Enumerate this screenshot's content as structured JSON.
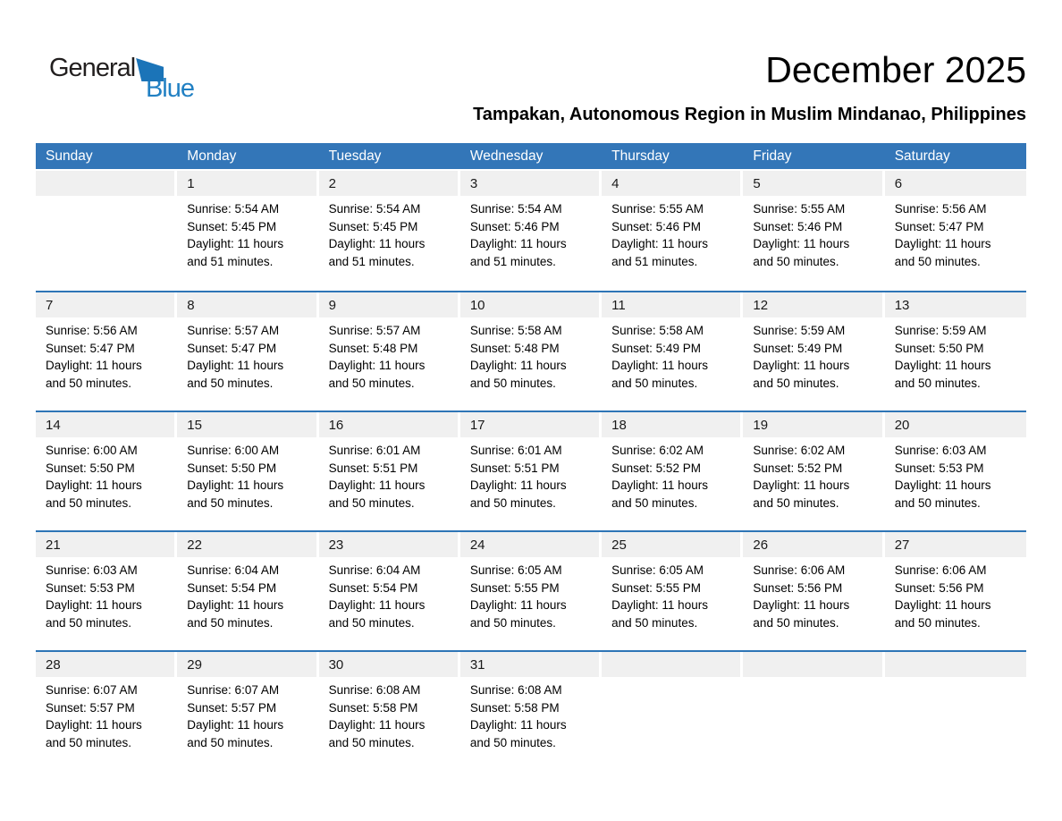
{
  "logo": {
    "general": "General",
    "blue": "Blue"
  },
  "header": {
    "month_year": "December 2025",
    "location": "Tampakan, Autonomous Region in Muslim Mindanao, Philippines"
  },
  "weekdays": [
    "Sunday",
    "Monday",
    "Tuesday",
    "Wednesday",
    "Thursday",
    "Friday",
    "Saturday"
  ],
  "colors": {
    "header_blue": "#3376b8",
    "separator_blue": "#2e75b6",
    "day_strip_gray": "#f0f0f0",
    "logo_blue": "#2180c3",
    "logo_triangle_blue": "#1b74b8",
    "text_black": "#000000"
  },
  "weeks": [
    [
      {
        "day": "",
        "sunrise": "",
        "sunset": "",
        "daylight1": "",
        "daylight2": ""
      },
      {
        "day": "1",
        "sunrise": "Sunrise: 5:54 AM",
        "sunset": "Sunset: 5:45 PM",
        "daylight1": "Daylight: 11 hours",
        "daylight2": "and 51 minutes."
      },
      {
        "day": "2",
        "sunrise": "Sunrise: 5:54 AM",
        "sunset": "Sunset: 5:45 PM",
        "daylight1": "Daylight: 11 hours",
        "daylight2": "and 51 minutes."
      },
      {
        "day": "3",
        "sunrise": "Sunrise: 5:54 AM",
        "sunset": "Sunset: 5:46 PM",
        "daylight1": "Daylight: 11 hours",
        "daylight2": "and 51 minutes."
      },
      {
        "day": "4",
        "sunrise": "Sunrise: 5:55 AM",
        "sunset": "Sunset: 5:46 PM",
        "daylight1": "Daylight: 11 hours",
        "daylight2": "and 51 minutes."
      },
      {
        "day": "5",
        "sunrise": "Sunrise: 5:55 AM",
        "sunset": "Sunset: 5:46 PM",
        "daylight1": "Daylight: 11 hours",
        "daylight2": "and 50 minutes."
      },
      {
        "day": "6",
        "sunrise": "Sunrise: 5:56 AM",
        "sunset": "Sunset: 5:47 PM",
        "daylight1": "Daylight: 11 hours",
        "daylight2": "and 50 minutes."
      }
    ],
    [
      {
        "day": "7",
        "sunrise": "Sunrise: 5:56 AM",
        "sunset": "Sunset: 5:47 PM",
        "daylight1": "Daylight: 11 hours",
        "daylight2": "and 50 minutes."
      },
      {
        "day": "8",
        "sunrise": "Sunrise: 5:57 AM",
        "sunset": "Sunset: 5:47 PM",
        "daylight1": "Daylight: 11 hours",
        "daylight2": "and 50 minutes."
      },
      {
        "day": "9",
        "sunrise": "Sunrise: 5:57 AM",
        "sunset": "Sunset: 5:48 PM",
        "daylight1": "Daylight: 11 hours",
        "daylight2": "and 50 minutes."
      },
      {
        "day": "10",
        "sunrise": "Sunrise: 5:58 AM",
        "sunset": "Sunset: 5:48 PM",
        "daylight1": "Daylight: 11 hours",
        "daylight2": "and 50 minutes."
      },
      {
        "day": "11",
        "sunrise": "Sunrise: 5:58 AM",
        "sunset": "Sunset: 5:49 PM",
        "daylight1": "Daylight: 11 hours",
        "daylight2": "and 50 minutes."
      },
      {
        "day": "12",
        "sunrise": "Sunrise: 5:59 AM",
        "sunset": "Sunset: 5:49 PM",
        "daylight1": "Daylight: 11 hours",
        "daylight2": "and 50 minutes."
      },
      {
        "day": "13",
        "sunrise": "Sunrise: 5:59 AM",
        "sunset": "Sunset: 5:50 PM",
        "daylight1": "Daylight: 11 hours",
        "daylight2": "and 50 minutes."
      }
    ],
    [
      {
        "day": "14",
        "sunrise": "Sunrise: 6:00 AM",
        "sunset": "Sunset: 5:50 PM",
        "daylight1": "Daylight: 11 hours",
        "daylight2": "and 50 minutes."
      },
      {
        "day": "15",
        "sunrise": "Sunrise: 6:00 AM",
        "sunset": "Sunset: 5:50 PM",
        "daylight1": "Daylight: 11 hours",
        "daylight2": "and 50 minutes."
      },
      {
        "day": "16",
        "sunrise": "Sunrise: 6:01 AM",
        "sunset": "Sunset: 5:51 PM",
        "daylight1": "Daylight: 11 hours",
        "daylight2": "and 50 minutes."
      },
      {
        "day": "17",
        "sunrise": "Sunrise: 6:01 AM",
        "sunset": "Sunset: 5:51 PM",
        "daylight1": "Daylight: 11 hours",
        "daylight2": "and 50 minutes."
      },
      {
        "day": "18",
        "sunrise": "Sunrise: 6:02 AM",
        "sunset": "Sunset: 5:52 PM",
        "daylight1": "Daylight: 11 hours",
        "daylight2": "and 50 minutes."
      },
      {
        "day": "19",
        "sunrise": "Sunrise: 6:02 AM",
        "sunset": "Sunset: 5:52 PM",
        "daylight1": "Daylight: 11 hours",
        "daylight2": "and 50 minutes."
      },
      {
        "day": "20",
        "sunrise": "Sunrise: 6:03 AM",
        "sunset": "Sunset: 5:53 PM",
        "daylight1": "Daylight: 11 hours",
        "daylight2": "and 50 minutes."
      }
    ],
    [
      {
        "day": "21",
        "sunrise": "Sunrise: 6:03 AM",
        "sunset": "Sunset: 5:53 PM",
        "daylight1": "Daylight: 11 hours",
        "daylight2": "and 50 minutes."
      },
      {
        "day": "22",
        "sunrise": "Sunrise: 6:04 AM",
        "sunset": "Sunset: 5:54 PM",
        "daylight1": "Daylight: 11 hours",
        "daylight2": "and 50 minutes."
      },
      {
        "day": "23",
        "sunrise": "Sunrise: 6:04 AM",
        "sunset": "Sunset: 5:54 PM",
        "daylight1": "Daylight: 11 hours",
        "daylight2": "and 50 minutes."
      },
      {
        "day": "24",
        "sunrise": "Sunrise: 6:05 AM",
        "sunset": "Sunset: 5:55 PM",
        "daylight1": "Daylight: 11 hours",
        "daylight2": "and 50 minutes."
      },
      {
        "day": "25",
        "sunrise": "Sunrise: 6:05 AM",
        "sunset": "Sunset: 5:55 PM",
        "daylight1": "Daylight: 11 hours",
        "daylight2": "and 50 minutes."
      },
      {
        "day": "26",
        "sunrise": "Sunrise: 6:06 AM",
        "sunset": "Sunset: 5:56 PM",
        "daylight1": "Daylight: 11 hours",
        "daylight2": "and 50 minutes."
      },
      {
        "day": "27",
        "sunrise": "Sunrise: 6:06 AM",
        "sunset": "Sunset: 5:56 PM",
        "daylight1": "Daylight: 11 hours",
        "daylight2": "and 50 minutes."
      }
    ],
    [
      {
        "day": "28",
        "sunrise": "Sunrise: 6:07 AM",
        "sunset": "Sunset: 5:57 PM",
        "daylight1": "Daylight: 11 hours",
        "daylight2": "and 50 minutes."
      },
      {
        "day": "29",
        "sunrise": "Sunrise: 6:07 AM",
        "sunset": "Sunset: 5:57 PM",
        "daylight1": "Daylight: 11 hours",
        "daylight2": "and 50 minutes."
      },
      {
        "day": "30",
        "sunrise": "Sunrise: 6:08 AM",
        "sunset": "Sunset: 5:58 PM",
        "daylight1": "Daylight: 11 hours",
        "daylight2": "and 50 minutes."
      },
      {
        "day": "31",
        "sunrise": "Sunrise: 6:08 AM",
        "sunset": "Sunset: 5:58 PM",
        "daylight1": "Daylight: 11 hours",
        "daylight2": "and 50 minutes."
      },
      {
        "day": "",
        "sunrise": "",
        "sunset": "",
        "daylight1": "",
        "daylight2": ""
      },
      {
        "day": "",
        "sunrise": "",
        "sunset": "",
        "daylight1": "",
        "daylight2": ""
      },
      {
        "day": "",
        "sunrise": "",
        "sunset": "",
        "daylight1": "",
        "daylight2": ""
      }
    ]
  ]
}
